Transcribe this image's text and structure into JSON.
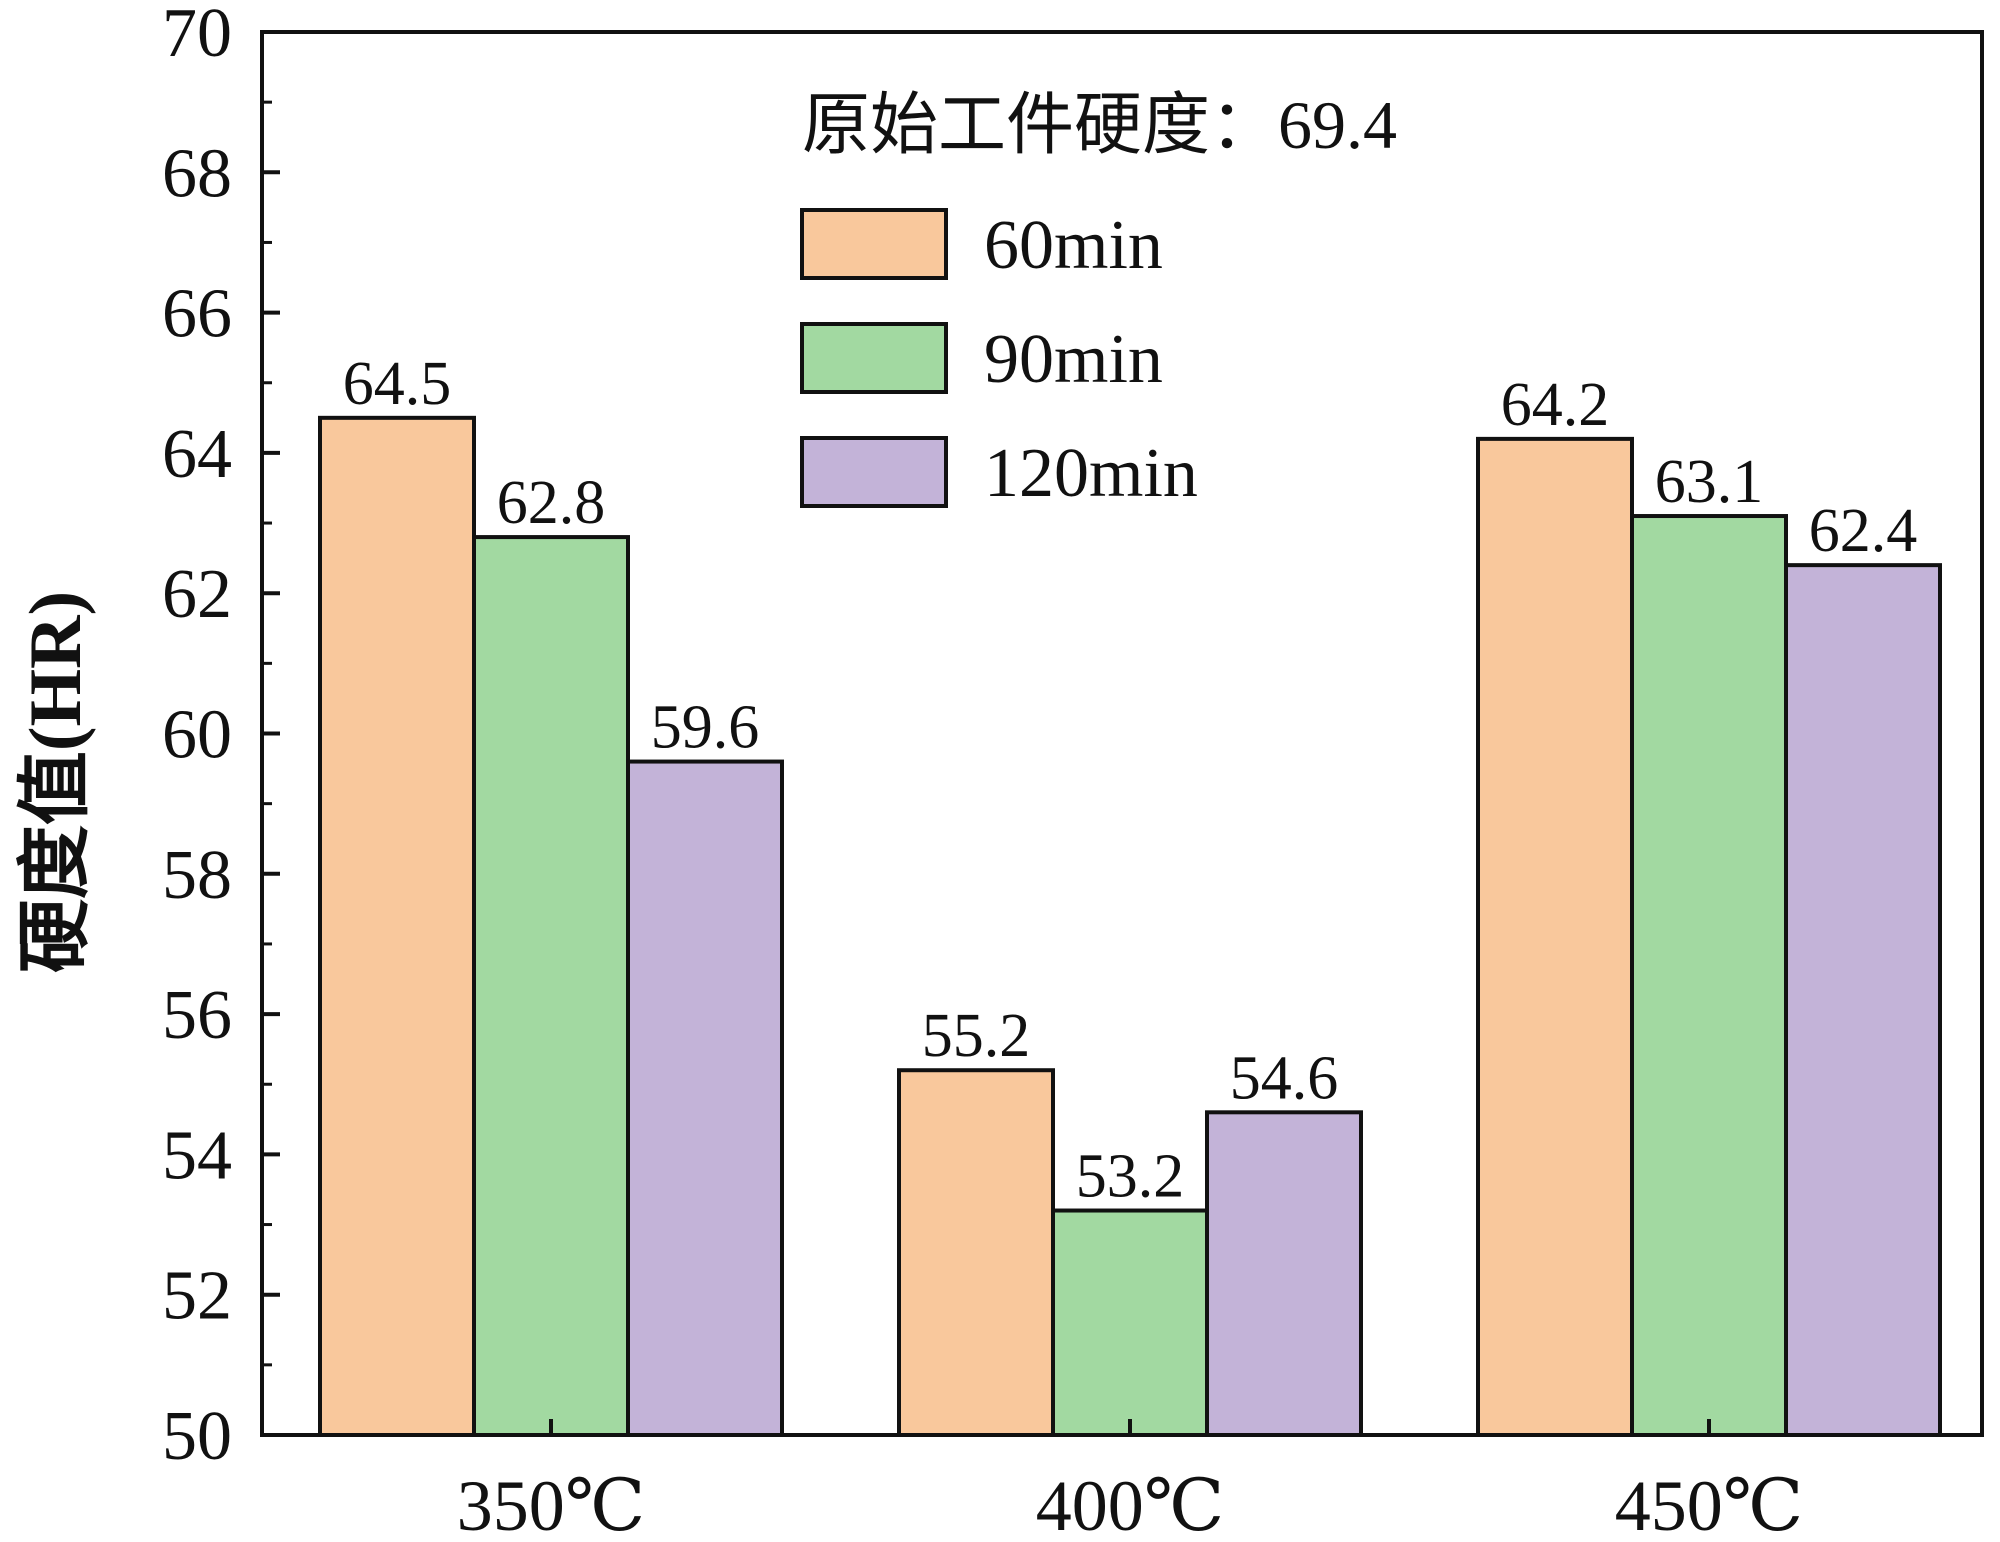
{
  "chart_data": {
    "type": "bar",
    "title": "",
    "xlabel": "",
    "ylabel": "硬度值(HR)",
    "ylim": [
      50,
      70
    ],
    "yticks": [
      50,
      52,
      54,
      56,
      58,
      60,
      62,
      64,
      66,
      68,
      70
    ],
    "categories": [
      "350℃",
      "400℃",
      "450℃"
    ],
    "series": [
      {
        "name": "60min",
        "color": "#f9c89c",
        "values": [
          64.5,
          55.2,
          64.2
        ]
      },
      {
        "name": "90min",
        "color": "#a2d9a1",
        "values": [
          62.8,
          53.2,
          63.1
        ]
      },
      {
        "name": "120min",
        "color": "#c3b3d8",
        "values": [
          59.6,
          54.6,
          62.4
        ]
      }
    ],
    "data_labels": [
      [
        "64.5",
        "55.2",
        "64.2"
      ],
      [
        "62.8",
        "53.2",
        "63.1"
      ],
      [
        "59.6",
        "54.6",
        "62.4"
      ]
    ],
    "annotation": "原始工件硬度：69.4",
    "legend_position": "top-right",
    "grid": false
  }
}
